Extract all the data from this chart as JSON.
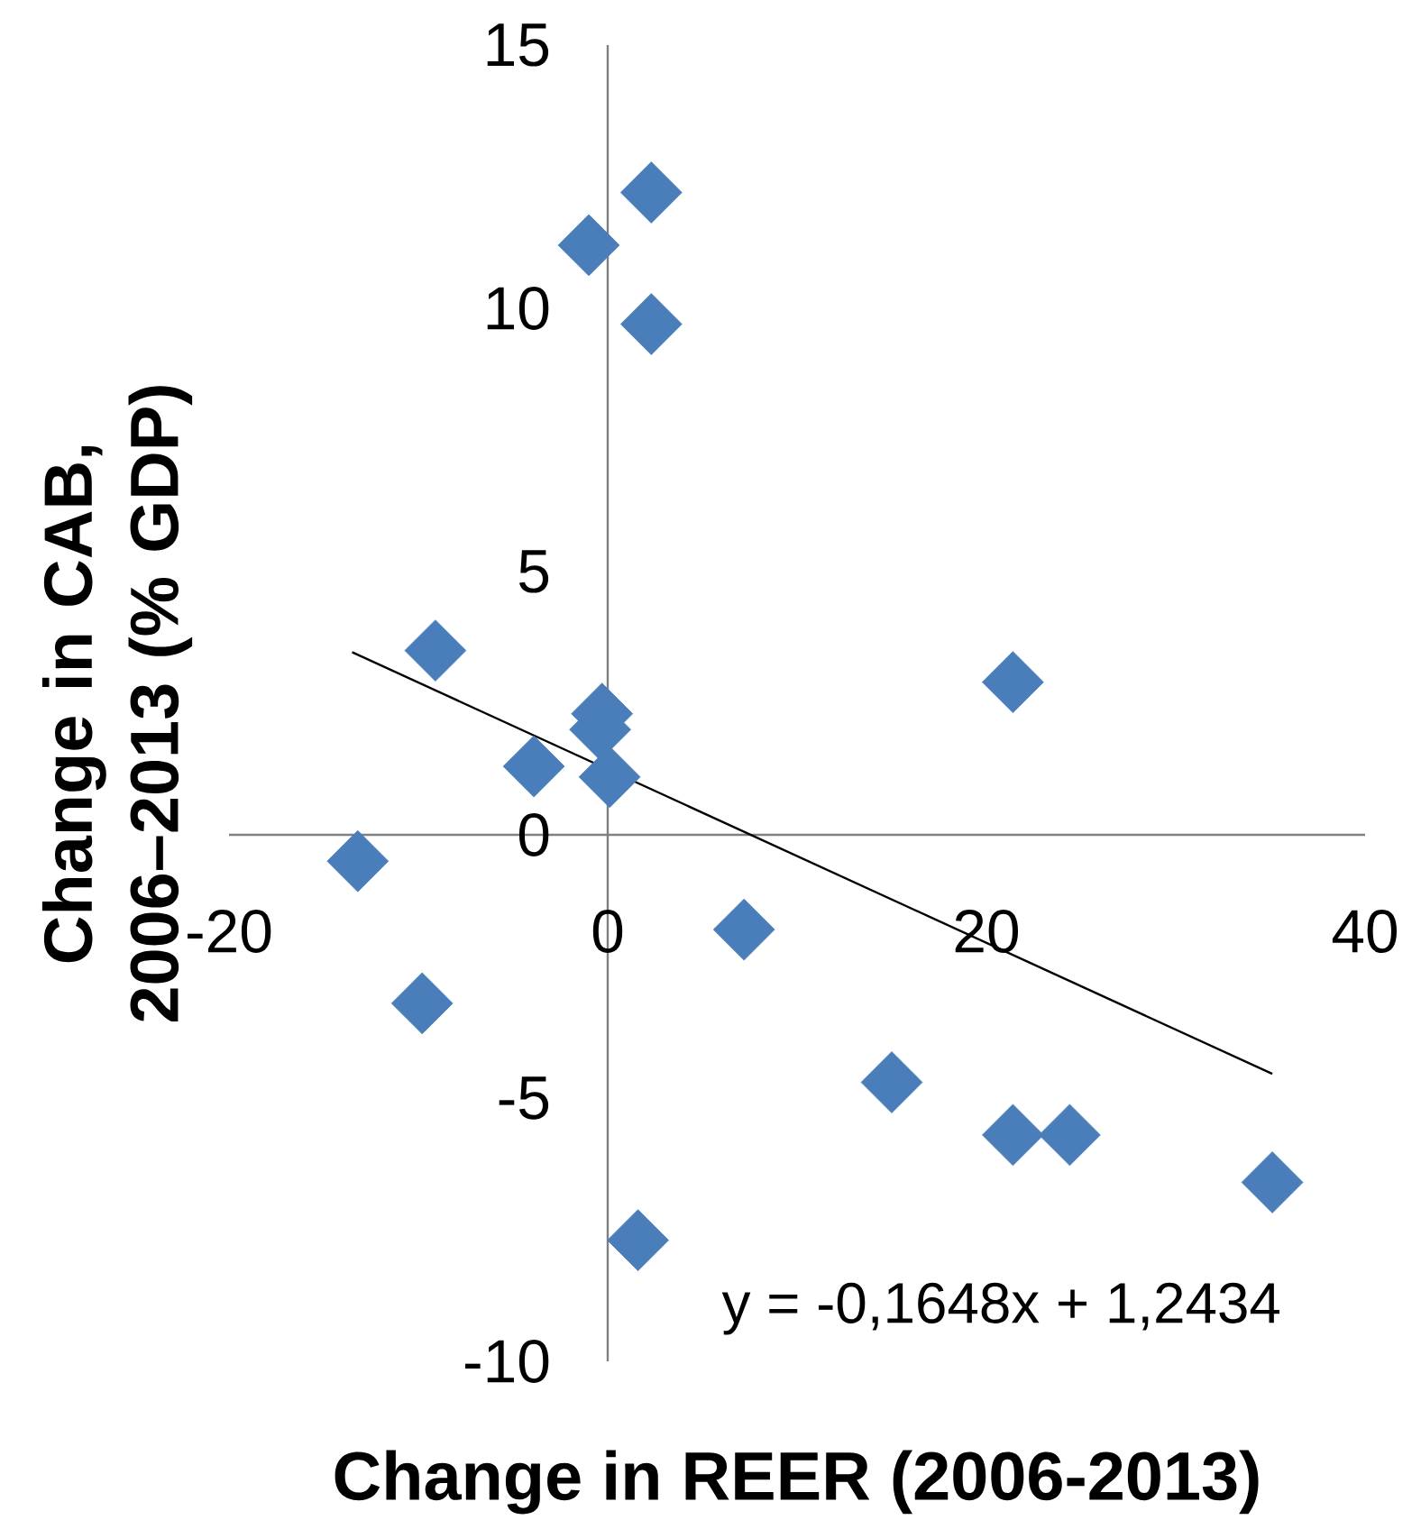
{
  "chart_data": {
    "type": "scatter",
    "xlabel": "Change in REER (2006-2013)",
    "ylabel": "Change in CAB, 2006–2013 (% GDP)",
    "annotations": [
      "y = -0,1648x + 1,2434"
    ],
    "xlim": [
      -20,
      40
    ],
    "xticks": [
      -20,
      0,
      20,
      40
    ],
    "ylim": [
      -10,
      15
    ],
    "yticks": [
      -10,
      -5,
      0,
      5,
      10,
      15
    ],
    "marker": "diamond",
    "grid": false,
    "series": [
      {
        "color": "#4a7ebb",
        "x": [
          -13.2,
          -9.8,
          -9.1,
          -3.9,
          -1.0,
          -0.3,
          -0.4,
          0.1,
          2.3,
          2.3,
          1.6,
          7.2,
          15.0,
          21.4,
          21.4,
          24.4,
          35.1
        ],
        "values": [
          -0.5,
          -3.2,
          3.5,
          1.3,
          11.2,
          2.3,
          2.0,
          1.1,
          12.2,
          9.7,
          -7.7,
          -1.8,
          -4.7,
          2.9,
          -5.7,
          -5.7,
          -6.6
        ]
      },
      {
        "type": "line",
        "marker": "none",
        "color": "#000000",
        "x": [
          -13.5,
          35.1
        ],
        "values": [
          3.47,
          -4.54
        ]
      }
    ]
  }
}
